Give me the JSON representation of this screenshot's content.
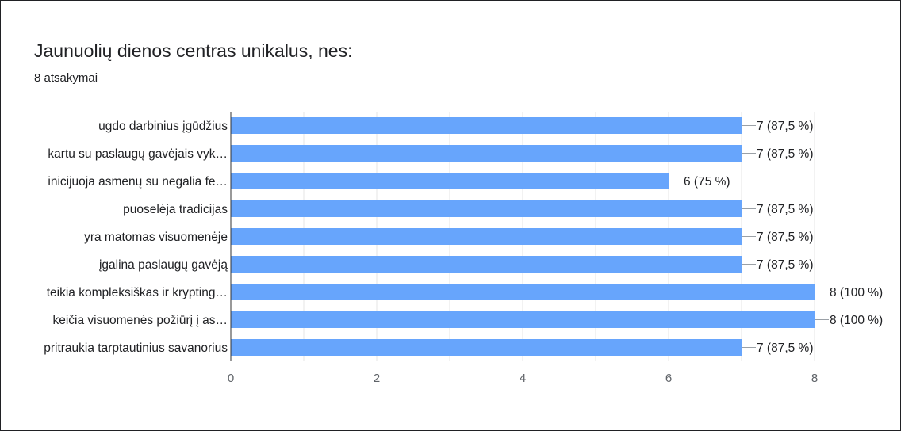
{
  "title": "Jaunuolių dienos centras unikalus, nes:",
  "subtitle": "8 atsakymai",
  "colors": {
    "bar": "#67a5fc",
    "grid": "#e6e6e6",
    "axis": "#333333",
    "label": "#202124",
    "tick": "#5f6368"
  },
  "chart_data": {
    "type": "bar",
    "orientation": "horizontal",
    "categories": [
      "ugdo darbinius įgūdžius",
      "kartu su paslaugų gavėjais vyk…",
      "inicijuoja asmenų su negalia fe…",
      "puoselėja tradicijas",
      "yra matomas visuomenėje",
      "įgalina paslaugų gavėją",
      "teikia kompleksiškas ir krypting…",
      "keičia visuomenės požiūrį į as…",
      "pritraukia tarptautinius savanorius"
    ],
    "values": [
      7,
      7,
      6,
      7,
      7,
      7,
      8,
      8,
      7
    ],
    "value_labels": [
      "7 (87,5 %)",
      "7 (87,5 %)",
      "6 (75 %)",
      "7 (87,5 %)",
      "7 (87,5 %)",
      "7 (87,5 %)",
      "8 (100 %)",
      "8 (100 %)",
      "7 (87,5 %)"
    ],
    "xlim": [
      0,
      8
    ],
    "xticks": [
      0,
      2,
      4,
      6,
      8
    ],
    "grid": true
  }
}
